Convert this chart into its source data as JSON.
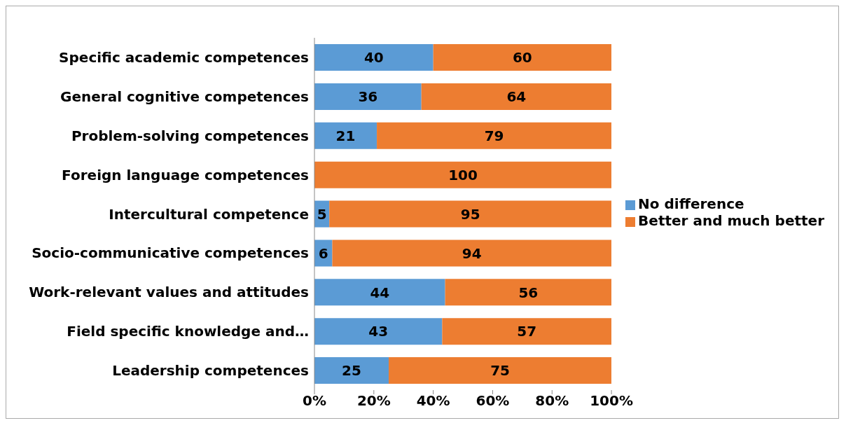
{
  "chart_data": {
    "type": "bar",
    "orientation": "horizontal",
    "stacked": true,
    "categories": [
      "Specific academic competences",
      "General cognitive competences",
      "Problem-solving competences",
      "Foreign language competences",
      "Intercultural competence",
      "Socio-communicative competences",
      "Work-relevant values and attitudes",
      "Field specific knowledge and…",
      "Leadership competences"
    ],
    "series": [
      {
        "name": "No difference",
        "color": "#5b9bd5",
        "values": [
          40,
          36,
          21,
          0,
          5,
          6,
          44,
          43,
          25
        ],
        "value_labels": [
          "40",
          "36",
          "21",
          null,
          "5",
          "6",
          "44",
          "43",
          "25"
        ]
      },
      {
        "name": "Better and much better",
        "color": "#ed7d31",
        "values": [
          60,
          64,
          79,
          100,
          95,
          94,
          56,
          57,
          75
        ],
        "value_labels": [
          "60",
          "64",
          "79",
          "100",
          "95",
          "94",
          "56",
          "57",
          "75"
        ]
      }
    ],
    "xlim": [
      0,
      100
    ],
    "xticks": [
      {
        "value": 0,
        "label": "0%"
      },
      {
        "value": 20,
        "label": "20%"
      },
      {
        "value": 40,
        "label": "40%"
      },
      {
        "value": 60,
        "label": "60%"
      },
      {
        "value": 80,
        "label": "80%"
      },
      {
        "value": 100,
        "label": "100%"
      }
    ],
    "grid": false,
    "legend": "right"
  }
}
